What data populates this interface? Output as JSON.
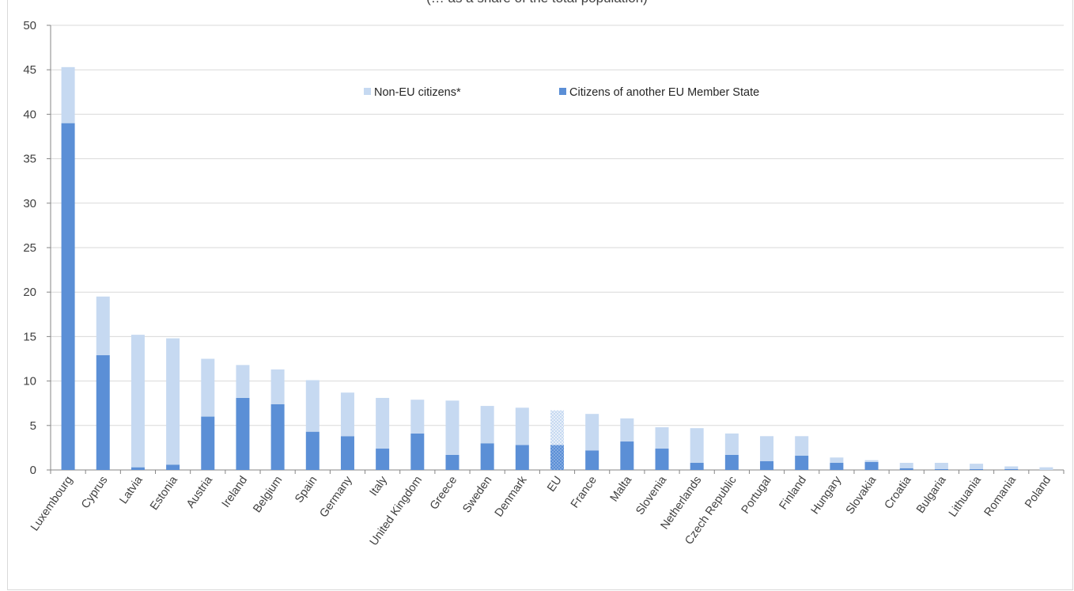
{
  "chart_data": {
    "type": "bar",
    "stacked": true,
    "title": "(… as a share of the total population)",
    "xlabel": "",
    "ylabel": "",
    "ylim": [
      0,
      50
    ],
    "yticks": [
      0,
      5,
      10,
      15,
      20,
      25,
      30,
      35,
      40,
      45,
      50
    ],
    "grid": true,
    "legend_position": "top-center",
    "categories": [
      "Luxembourg",
      "Cyprus",
      "Latvia",
      "Estonia",
      "Austria",
      "Ireland",
      "Belgium",
      "Spain",
      "Germany",
      "Italy",
      "United Kingdom",
      "Greece",
      "Sweden",
      "Denmark",
      "EU",
      "France",
      "Malta",
      "Slovenia",
      "Netherlands",
      "Czech Republic",
      "Portugal",
      "Finland",
      "Hungary",
      "Slovakia",
      "Croatia",
      "Bulgaria",
      "Lithuania",
      "Romania",
      "Poland"
    ],
    "highlight_category": "EU",
    "series": [
      {
        "name": "Citizens of another EU Member State",
        "color": "#5b8fd6",
        "values": [
          39.0,
          12.9,
          0.3,
          0.6,
          6.0,
          8.1,
          7.4,
          4.3,
          3.8,
          2.4,
          4.1,
          1.7,
          3.0,
          2.8,
          2.8,
          2.2,
          3.2,
          2.4,
          0.8,
          1.7,
          1.0,
          1.6,
          0.8,
          0.9,
          0.2,
          0.1,
          0.1,
          0.1,
          0.0
        ]
      },
      {
        "name": "Non-EU citizens*",
        "color": "#c6d9f1",
        "values": [
          6.3,
          6.6,
          14.9,
          14.2,
          6.5,
          3.7,
          3.9,
          5.8,
          4.9,
          5.7,
          3.8,
          6.1,
          4.2,
          4.2,
          3.9,
          4.1,
          2.6,
          2.4,
          3.9,
          2.4,
          2.8,
          2.2,
          0.6,
          0.2,
          0.6,
          0.7,
          0.6,
          0.3,
          0.3
        ]
      }
    ]
  }
}
